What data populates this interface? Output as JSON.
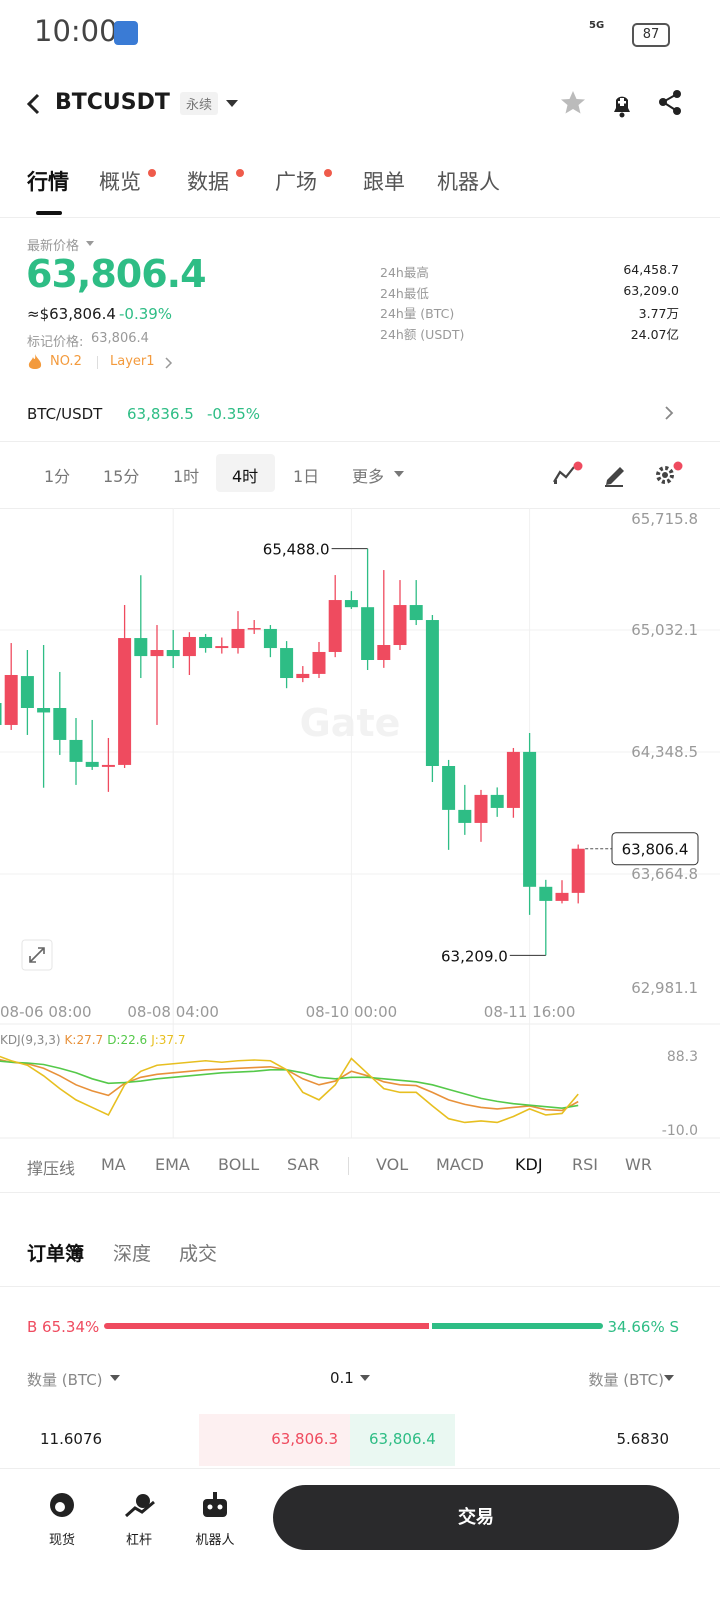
{
  "status": {
    "time": "10:00",
    "network": "5G",
    "battery": "87"
  },
  "header": {
    "symbol": "BTCUSDT",
    "tag": "永续"
  },
  "tabs": {
    "items": [
      "行情",
      "概览",
      "数据",
      "广场",
      "跟单",
      "机器人"
    ],
    "active": 0
  },
  "price": {
    "label": "最新价格",
    "last": "63,806.4",
    "usd": "≈$63,806.4",
    "change": "-0.39%",
    "mark_label": "标记价格:",
    "mark_value": "63,806.4",
    "rank": "NO.2",
    "sector": "Layer1"
  },
  "stats": [
    [
      "24h最高",
      "64,458.7"
    ],
    [
      "24h最低",
      "63,209.0"
    ],
    [
      "24h量 (BTC)",
      "3.77万"
    ],
    [
      "24h额 (USDT)",
      "24.07亿"
    ]
  ],
  "spot": {
    "pair": "BTC/USDT",
    "price": "63,836.5",
    "change": "-0.35%"
  },
  "intervals": {
    "items": [
      "1分",
      "15分",
      "1时",
      "4时",
      "1日",
      "更多"
    ],
    "active": 3
  },
  "chart_data": [
    {
      "type": "candlestick",
      "watermark": "Gate",
      "up_color": "#ef4b5f",
      "down_color": "#2ebd85",
      "grid": true,
      "categories": [
        "08-06 08:00",
        null,
        null,
        null,
        null,
        null,
        null,
        null,
        null,
        null,
        null,
        "08-08 04:00",
        null,
        null,
        null,
        null,
        null,
        null,
        null,
        null,
        null,
        null,
        "08-10 00:00",
        null,
        null,
        null,
        null,
        null,
        null,
        null,
        null,
        null,
        null,
        "08-11 16:00",
        null,
        null,
        null
      ],
      "open": [
        64623,
        64500,
        64774,
        64595,
        64595,
        64416,
        64293,
        64265,
        64276,
        64987,
        64886,
        64920,
        64886,
        64993,
        64931,
        64931,
        65038,
        65038,
        64931,
        64763,
        64786,
        64909,
        65200,
        65160,
        64864,
        64948,
        65172,
        65088,
        64270,
        64024,
        63951,
        64108,
        64035,
        64349,
        63593,
        63514,
        63559
      ],
      "high": [
        64640,
        64959,
        64920,
        64948,
        64797,
        64539,
        64528,
        64427,
        65172,
        65339,
        65060,
        65032,
        65020,
        65010,
        64990,
        65138,
        65088,
        65060,
        64970,
        64830,
        64965,
        65340,
        65250,
        65488,
        65368,
        65312,
        65312,
        65116,
        64304,
        64164,
        64136,
        64150,
        64371,
        64455,
        63632,
        63630,
        63830
      ],
      "low": [
        64484,
        64472,
        64444,
        64148,
        64332,
        64164,
        64248,
        64125,
        64259,
        64763,
        64500,
        64819,
        64780,
        64905,
        64900,
        64900,
        65010,
        64880,
        64706,
        64740,
        64763,
        64880,
        65150,
        64808,
        64820,
        64920,
        65060,
        64180,
        63800,
        63884,
        63845,
        63985,
        63980,
        63436,
        63209,
        63500,
        63500
      ],
      "close": [
        64500,
        64780,
        64595,
        64570,
        64416,
        64293,
        64265,
        64276,
        64987,
        64886,
        64920,
        64886,
        64993,
        64931,
        64942,
        65038,
        65043,
        64931,
        64763,
        64786,
        64909,
        65200,
        65160,
        64864,
        64948,
        65172,
        65088,
        64270,
        64024,
        63951,
        64108,
        64035,
        64349,
        63593,
        63514,
        63559,
        63806.4
      ],
      "ylim": [
        62981.1,
        65715.8
      ],
      "yticks": [
        {
          "value": 62981.1,
          "label": "62,981.1"
        },
        {
          "value": 63664.8,
          "label": "63,664.8"
        },
        {
          "value": 64348.5,
          "label": "64,348.5"
        },
        {
          "value": 65032.1,
          "label": "65,032.1"
        },
        {
          "value": 65715.8,
          "label": "65,715.8"
        }
      ],
      "last_price": {
        "value": 63806.4,
        "label": "63,806.4"
      },
      "high_label": {
        "value": 65488.0,
        "label": "65,488.0",
        "index": 23
      },
      "low_label": {
        "value": 63209.0,
        "label": "63,209.0",
        "index": 34
      }
    },
    {
      "type": "line",
      "title": "KDJ(9,3,3)",
      "ylim": [
        -10,
        88.3
      ],
      "yticks": [
        88.3,
        {
          "value": -10,
          "label": "-10.0"
        }
      ],
      "series": [
        {
          "label": "K:27.7",
          "color": "#e8913a",
          "values": [
            85,
            80,
            78,
            72,
            62,
            50,
            42,
            36,
            52,
            60,
            64,
            66,
            68,
            70,
            71,
            72,
            73,
            74,
            70,
            58,
            50,
            55,
            68,
            62,
            54,
            50,
            49,
            40,
            30,
            24,
            20,
            18,
            20,
            22,
            17,
            16,
            27.7
          ]
        },
        {
          "label": "D:22.6",
          "color": "#55c94a",
          "values": [
            82,
            80,
            79,
            77,
            72,
            66,
            58,
            52,
            53,
            55,
            58,
            60,
            62,
            64,
            66,
            67,
            68,
            70,
            70,
            66,
            60,
            58,
            60,
            60,
            58,
            56,
            54,
            50,
            44,
            38,
            32,
            28,
            25,
            23,
            21,
            19,
            22.6
          ]
        },
        {
          "label": "J:37.7",
          "color": "#e7bf20",
          "values": [
            90,
            82,
            76,
            62,
            45,
            30,
            20,
            10,
            50,
            68,
            76,
            78,
            80,
            82,
            80,
            82,
            83,
            82,
            70,
            40,
            30,
            50,
            85,
            65,
            45,
            40,
            40,
            22,
            5,
            0,
            2,
            0,
            8,
            18,
            10,
            12,
            37.7
          ]
        }
      ]
    }
  ],
  "indicators": {
    "items": [
      "撑压线",
      "MA",
      "EMA",
      "BOLL",
      "SAR",
      "VOL",
      "MACD",
      "KDJ",
      "RSI",
      "WR"
    ],
    "active": 7
  },
  "orderbook": {
    "tabs": [
      "订单簿",
      "深度",
      "成交"
    ],
    "active": 0,
    "buy": {
      "value": 65.34,
      "label": "B 65.34%"
    },
    "sell": {
      "value": 34.66,
      "label": "34.66% S"
    },
    "columns": [
      "数量 (BTC)",
      "0.1",
      "数量 (BTC)"
    ],
    "row": [
      "11.6076",
      "63,806.3",
      "63,806.4",
      "5.6830"
    ]
  },
  "nav": {
    "items": [
      "现货",
      "杠杆",
      "机器人"
    ],
    "button": "交易"
  }
}
